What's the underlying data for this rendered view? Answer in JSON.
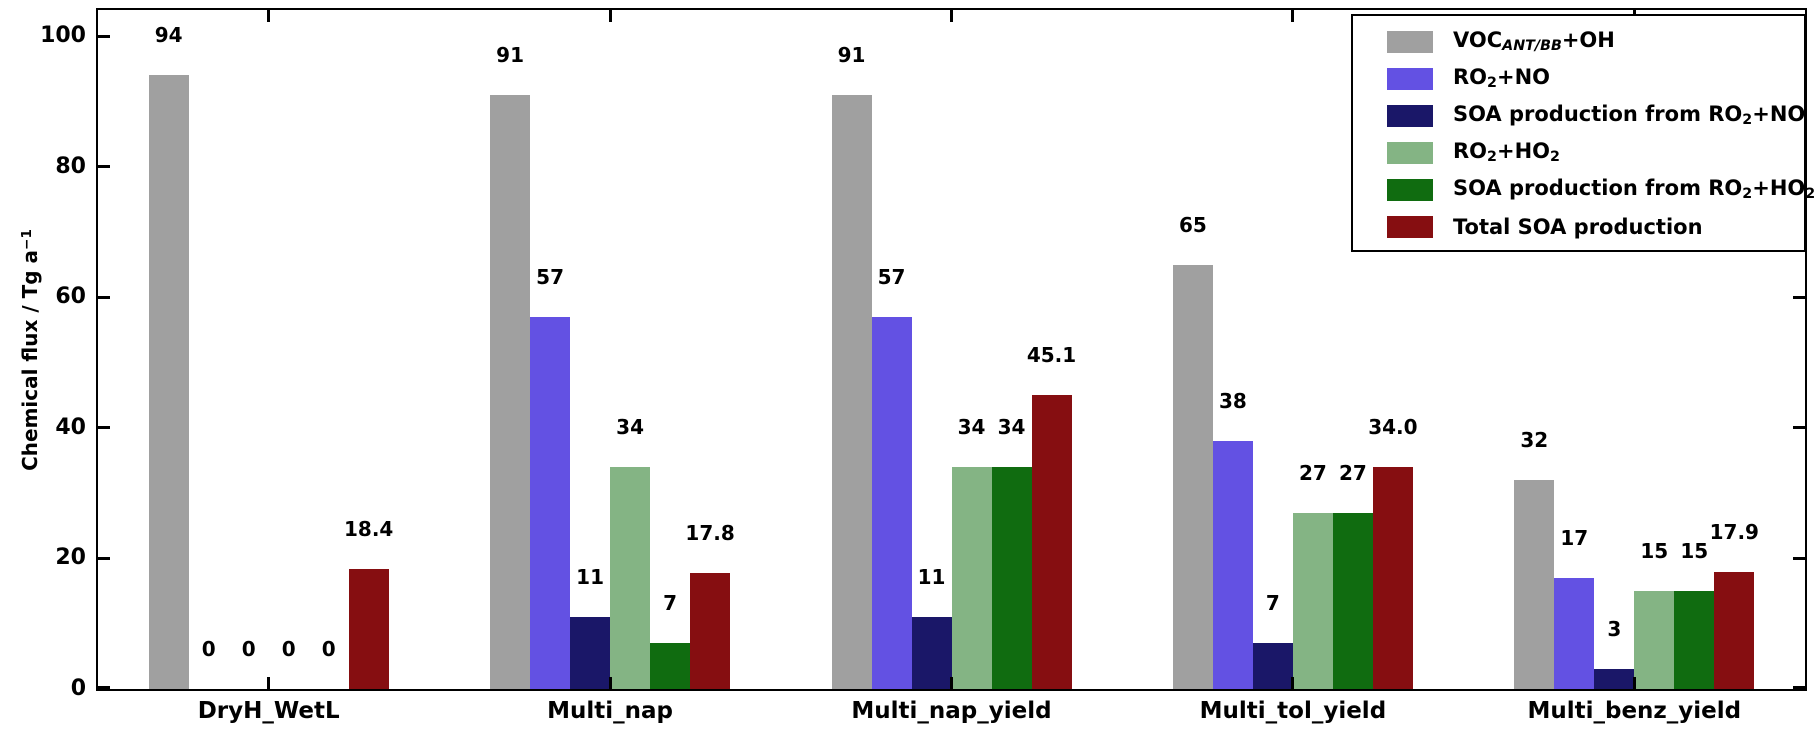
{
  "figure": {
    "background_color": "#ffffff",
    "axis_color": "#000000"
  },
  "chart_data": {
    "type": "bar",
    "title": "",
    "xlabel": "",
    "ylabel": "Chemical flux / Tg a⁻¹",
    "ylabel_segments": [
      {
        "t": "Chemical flux / Tg a"
      },
      {
        "t": "−1",
        "sup": true
      }
    ],
    "categories": [
      "DryH_WetL",
      "Multi_nap",
      "Multi_nap_yield",
      "Multi_tol_yield",
      "Multi_benz_yield"
    ],
    "yticks": [
      0,
      20,
      40,
      60,
      80,
      100
    ],
    "ylim": [
      0,
      104
    ],
    "grid": false,
    "legend_position": "upper right",
    "series": [
      {
        "name": "VOC_ANT/BB+OH",
        "name_segments": [
          {
            "t": "VOC"
          },
          {
            "t": "ANT/BB",
            "sub": true,
            "italic": true
          },
          {
            "t": "+OH"
          }
        ],
        "color": "#a0a0a0",
        "values": [
          94,
          91,
          91,
          65,
          32
        ],
        "labels": [
          "94",
          "91",
          "91",
          "65",
          "32"
        ]
      },
      {
        "name": "RO2+NO",
        "name_segments": [
          {
            "t": "RO"
          },
          {
            "t": "2",
            "sub": true
          },
          {
            "t": "+NO"
          }
        ],
        "color": "#6351e3",
        "values": [
          0,
          57,
          57,
          38,
          17
        ],
        "labels": [
          "0",
          "57",
          "57",
          "38",
          "17"
        ]
      },
      {
        "name": "SOA production from RO2+NO",
        "name_segments": [
          {
            "t": "SOA production from RO"
          },
          {
            "t": "2",
            "sub": true
          },
          {
            "t": "+NO"
          }
        ],
        "color": "#1a1768",
        "values": [
          0,
          11,
          11,
          7,
          3
        ],
        "labels": [
          "0",
          "11",
          "11",
          "7",
          "3"
        ]
      },
      {
        "name": "RO2+HO2",
        "name_segments": [
          {
            "t": "RO"
          },
          {
            "t": "2",
            "sub": true
          },
          {
            "t": "+HO"
          },
          {
            "t": "2",
            "sub": true
          }
        ],
        "color": "#84b484",
        "values": [
          0,
          34,
          34,
          27,
          15
        ],
        "labels": [
          "0",
          "34",
          "34",
          "27",
          "15"
        ]
      },
      {
        "name": "SOA production from RO2+HO2",
        "name_segments": [
          {
            "t": "SOA production from RO"
          },
          {
            "t": "2",
            "sub": true
          },
          {
            "t": "+HO"
          },
          {
            "t": "2",
            "sub": true
          }
        ],
        "color": "#106c10",
        "values": [
          0,
          7,
          34,
          27,
          15
        ],
        "labels": [
          "0",
          "7",
          "34",
          "27",
          "15"
        ]
      },
      {
        "name": "Total SOA production",
        "name_segments": [
          {
            "t": "Total SOA production"
          }
        ],
        "color": "#860e11",
        "values": [
          18.4,
          17.8,
          45.1,
          34.0,
          17.9
        ],
        "labels": [
          "18.4",
          "17.8",
          "45.1",
          "34.0",
          "17.9"
        ]
      }
    ]
  }
}
